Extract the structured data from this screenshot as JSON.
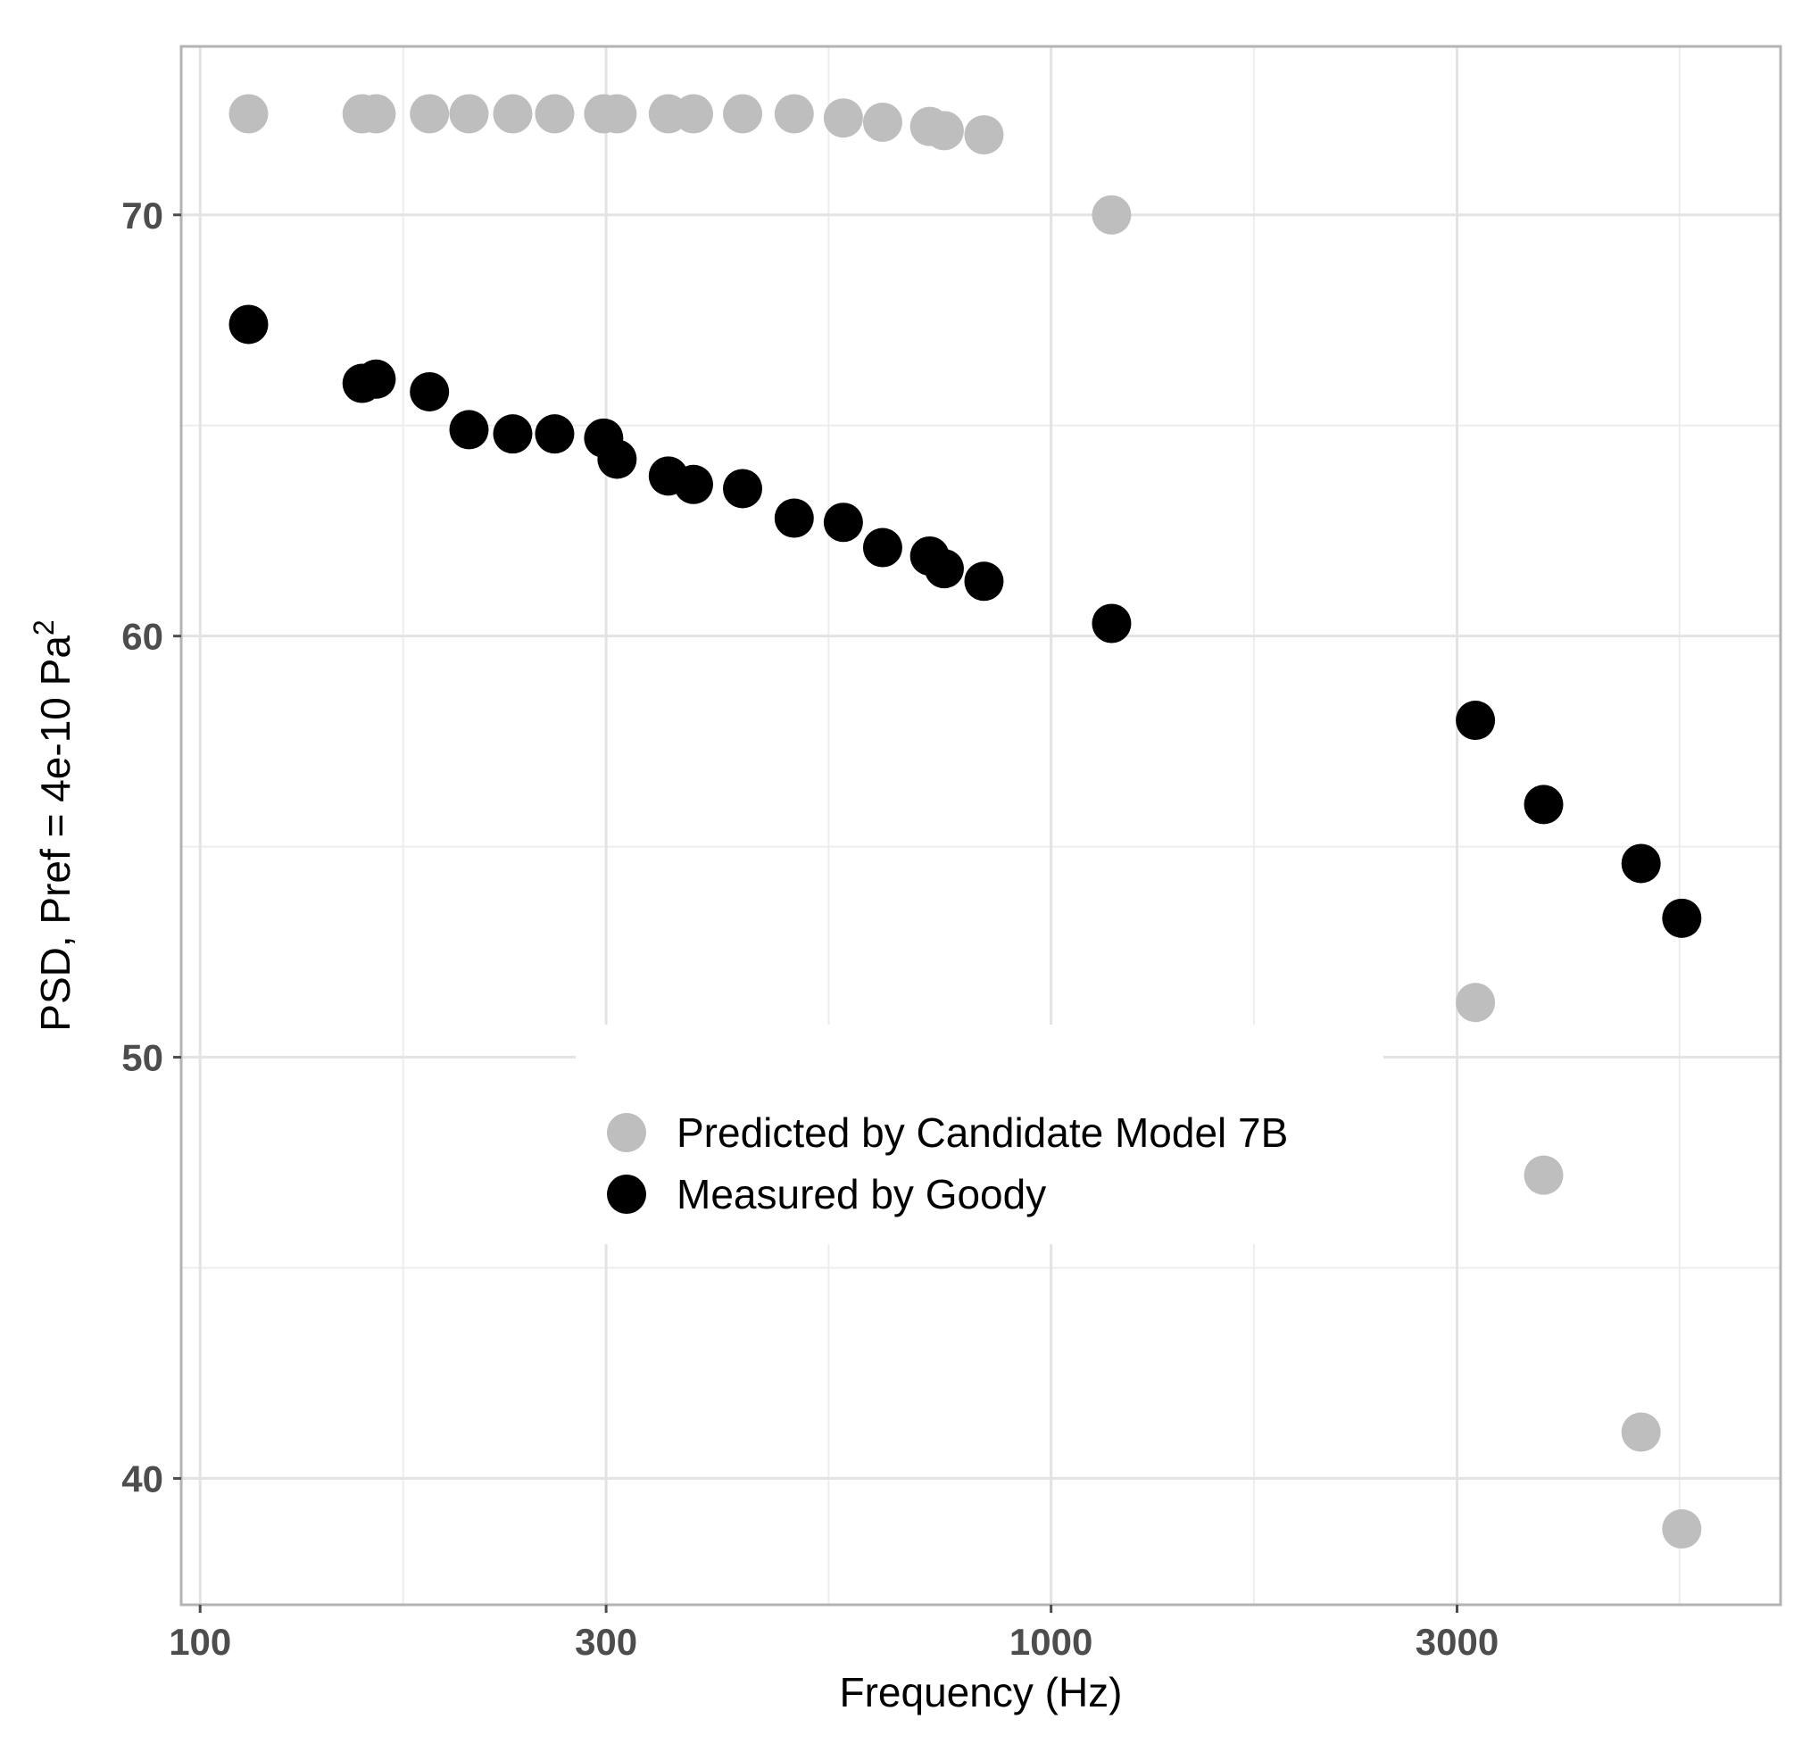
{
  "chart_data": {
    "type": "scatter",
    "title": "",
    "xlabel": "Frequency (Hz)",
    "ylabel_main": "PSD, Pref = 4e-10 Pa",
    "ylabel_superscript": "2",
    "xscale": "log10",
    "xlim": [
      95,
      7200
    ],
    "ylim": [
      37,
      74
    ],
    "x_ticks": [
      {
        "value": 100,
        "label": "100"
      },
      {
        "value": 300,
        "label": "300"
      },
      {
        "value": 1000,
        "label": "1000"
      },
      {
        "value": 3000,
        "label": "3000"
      }
    ],
    "x_minor_ticks": [
      173.2,
      547.7,
      1732.1,
      5477.2
    ],
    "y_ticks": [
      {
        "value": 40,
        "label": "40"
      },
      {
        "value": 50,
        "label": "50"
      },
      {
        "value": 60,
        "label": "60"
      },
      {
        "value": 70,
        "label": "70"
      }
    ],
    "y_minor_ticks": [
      45,
      55,
      65
    ],
    "grid": true,
    "legend_position": "center-bottom",
    "series": [
      {
        "name": "Predicted by Candidate Model 7B",
        "color": "#bebebe",
        "x": [
          114,
          155,
          161,
          186,
          207,
          233,
          261,
          298,
          309,
          355,
          380,
          434,
          499,
          570,
          634,
          720,
          749,
          834,
          1178,
          3153,
          3792,
          4936,
          5511
        ],
        "y": [
          72.4,
          72.4,
          72.4,
          72.4,
          72.4,
          72.4,
          72.4,
          72.4,
          72.4,
          72.4,
          72.4,
          72.4,
          72.4,
          72.3,
          72.2,
          72.1,
          72.0,
          71.9,
          70.0,
          51.3,
          47.2,
          41.1,
          38.8
        ]
      },
      {
        "name": "Measured by Goody",
        "color": "#000000",
        "x": [
          114,
          155,
          161,
          186,
          207,
          233,
          261,
          298,
          309,
          355,
          380,
          434,
          499,
          570,
          634,
          720,
          749,
          834,
          1178,
          3153,
          3792,
          4936,
          5511
        ],
        "y": [
          67.4,
          66.0,
          66.1,
          65.8,
          64.9,
          64.8,
          64.8,
          64.7,
          64.2,
          63.8,
          63.6,
          63.5,
          62.8,
          62.7,
          62.1,
          61.9,
          61.6,
          61.3,
          60.3,
          58.0,
          56.0,
          54.6,
          53.3
        ]
      }
    ]
  }
}
